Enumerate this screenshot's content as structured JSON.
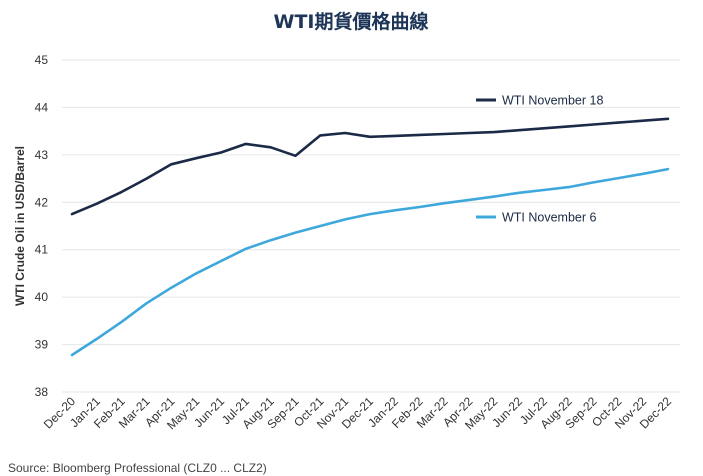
{
  "chart_data": {
    "type": "line",
    "title": "WTI期貨價格曲線",
    "ylabel": "WTI Crude Oil in USD/Barrel",
    "xlabel": "",
    "ylim": [
      38,
      45
    ],
    "yticks": [
      "38",
      "39",
      "40",
      "41",
      "42",
      "43",
      "44",
      "45"
    ],
    "grid": true,
    "legend": "inline",
    "categories": [
      "Dec-20",
      "Jan-21",
      "Feb-21",
      "Mar-21",
      "Apr-21",
      "May-21",
      "Jun-21",
      "Jul-21",
      "Aug-21",
      "Sep-21",
      "Oct-21",
      "Nov-21",
      "Dec-21",
      "Jan-22",
      "Feb-22",
      "Mar-22",
      "Apr-22",
      "May-22",
      "Jun-22",
      "Jul-22",
      "Aug-22",
      "Sep-22",
      "Oct-22",
      "Nov-22",
      "Dec-22"
    ],
    "series": [
      {
        "name": "WTI November 18",
        "color": "#1b2a47",
        "values": [
          41.75,
          41.97,
          42.22,
          42.5,
          42.8,
          42.93,
          43.05,
          43.23,
          43.16,
          42.98,
          43.41,
          43.46,
          43.38,
          43.4,
          43.42,
          43.44,
          43.46,
          43.48,
          43.52,
          43.56,
          43.6,
          43.64,
          43.68,
          43.72,
          43.76
        ]
      },
      {
        "name": "WTI November 6",
        "color": "#3ea8dc",
        "values": [
          38.78,
          39.12,
          39.48,
          39.87,
          40.2,
          40.5,
          40.76,
          41.02,
          41.2,
          41.36,
          41.5,
          41.64,
          41.75,
          41.83,
          41.9,
          41.98,
          42.05,
          42.12,
          42.2,
          42.26,
          42.32,
          42.42,
          42.51,
          42.6,
          42.7
        ]
      }
    ]
  },
  "source": "Source: Bloomberg Professional (CLZ0 ... CLZ2)"
}
